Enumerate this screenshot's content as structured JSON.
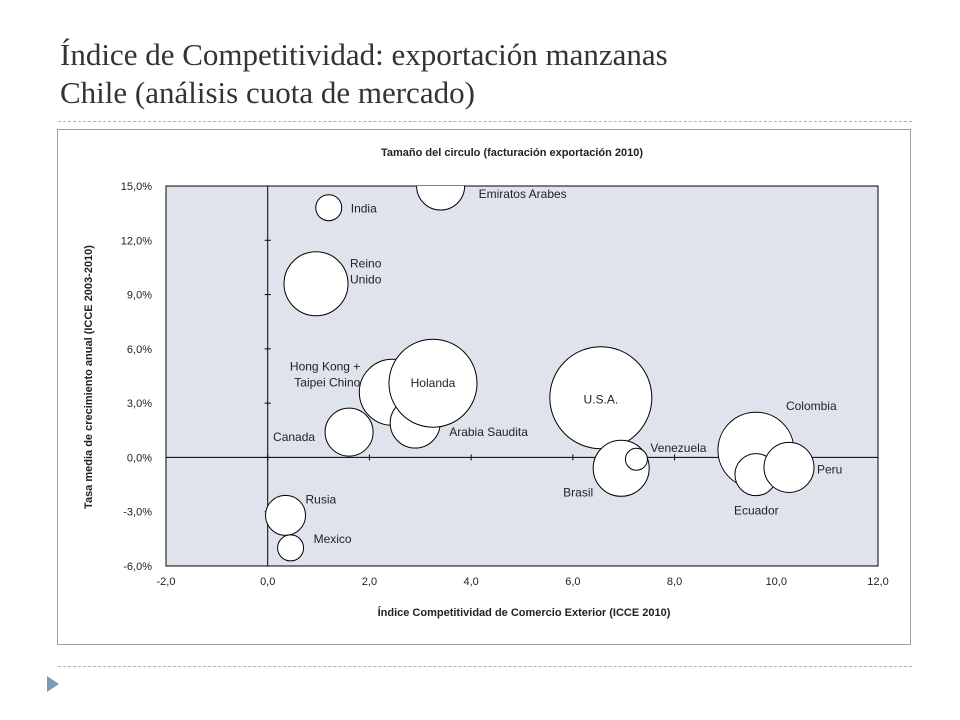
{
  "slide": {
    "title_line1": "Índice de Competitividad: exportación manzanas",
    "title_line2": "Chile (análisis cuota de mercado)"
  },
  "chart_data": {
    "type": "scatter",
    "subtitle": "Tamaño del circulo (facturación exportación 2010)",
    "xlabel": "Índice Competitividad de Comercio Exterior (ICCE 2010)",
    "ylabel": "Tasa media de crecimiento anual (ICCE 2003-2010)",
    "xlim": [
      -2,
      12
    ],
    "ylim": [
      -6,
      15
    ],
    "x_ticks": [
      -2,
      0,
      2,
      4,
      6,
      8,
      10,
      12
    ],
    "y_ticks": [
      -6,
      -3,
      0,
      3,
      6,
      9,
      12,
      15
    ],
    "x_tick_labels": [
      "-2,0",
      "0,0",
      "2,0",
      "4,0",
      "6,0",
      "8,0",
      "10,0",
      "12,0"
    ],
    "y_tick_labels": [
      "-6,0%",
      "-3,0%",
      "0,0%",
      "3,0%",
      "6,0%",
      "9,0%",
      "12,0%",
      "15,0%"
    ],
    "grid": false,
    "plot_background": "#dfe3ec",
    "bubble_fill": "#ffffff",
    "bubble_stroke": "#000000",
    "points": [
      {
        "name": "Emiratos Arabes",
        "x": 3.4,
        "y": 15.0,
        "size": 24
      },
      {
        "name": "India",
        "x": 1.2,
        "y": 13.8,
        "size": 13
      },
      {
        "name": "Reino Unido",
        "x": 0.95,
        "y": 9.6,
        "size": 32
      },
      {
        "name": "Hong Kong + Taipei Chino",
        "x": 2.45,
        "y": 3.6,
        "size": 33
      },
      {
        "name": "Arabia Saudita",
        "x": 2.9,
        "y": 1.9,
        "size": 25
      },
      {
        "name": "Canada",
        "x": 1.6,
        "y": 1.4,
        "size": 24
      },
      {
        "name": "Holanda",
        "x": 3.25,
        "y": 4.1,
        "size": 44
      },
      {
        "name": "U.S.A.",
        "x": 6.55,
        "y": 3.3,
        "size": 51
      },
      {
        "name": "Brasil",
        "x": 6.95,
        "y": -0.6,
        "size": 28
      },
      {
        "name": "Venezuela",
        "x": 7.25,
        "y": -0.1,
        "size": 11
      },
      {
        "name": "Colombia",
        "x": 9.6,
        "y": 0.4,
        "size": 38
      },
      {
        "name": "Ecuador",
        "x": 9.6,
        "y": -0.95,
        "size": 21
      },
      {
        "name": "Peru",
        "x": 10.25,
        "y": -0.55,
        "size": 25
      },
      {
        "name": "Rusia",
        "x": 0.35,
        "y": -3.2,
        "size": 20
      },
      {
        "name": "Mexico",
        "x": 0.45,
        "y": -5.0,
        "size": 13
      }
    ]
  }
}
